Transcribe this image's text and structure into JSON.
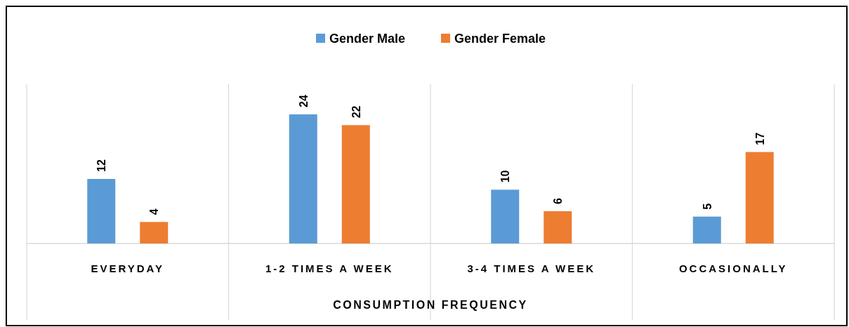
{
  "chart_data": {
    "type": "bar",
    "xlabel": "CONSUMPTION FREQUENCY",
    "categories": [
      "EVERYDAY",
      "1-2 TIMES A WEEK",
      "3-4 TIMES A WEEK",
      "OCCASIONALLY"
    ],
    "series": [
      {
        "name": "Gender Male",
        "color": "#5b9bd5",
        "values": [
          12,
          24,
          10,
          5
        ]
      },
      {
        "name": "Gender Female",
        "color": "#ed7d31",
        "values": [
          4,
          22,
          6,
          17
        ]
      }
    ],
    "data_labels": true,
    "legend": "top"
  }
}
